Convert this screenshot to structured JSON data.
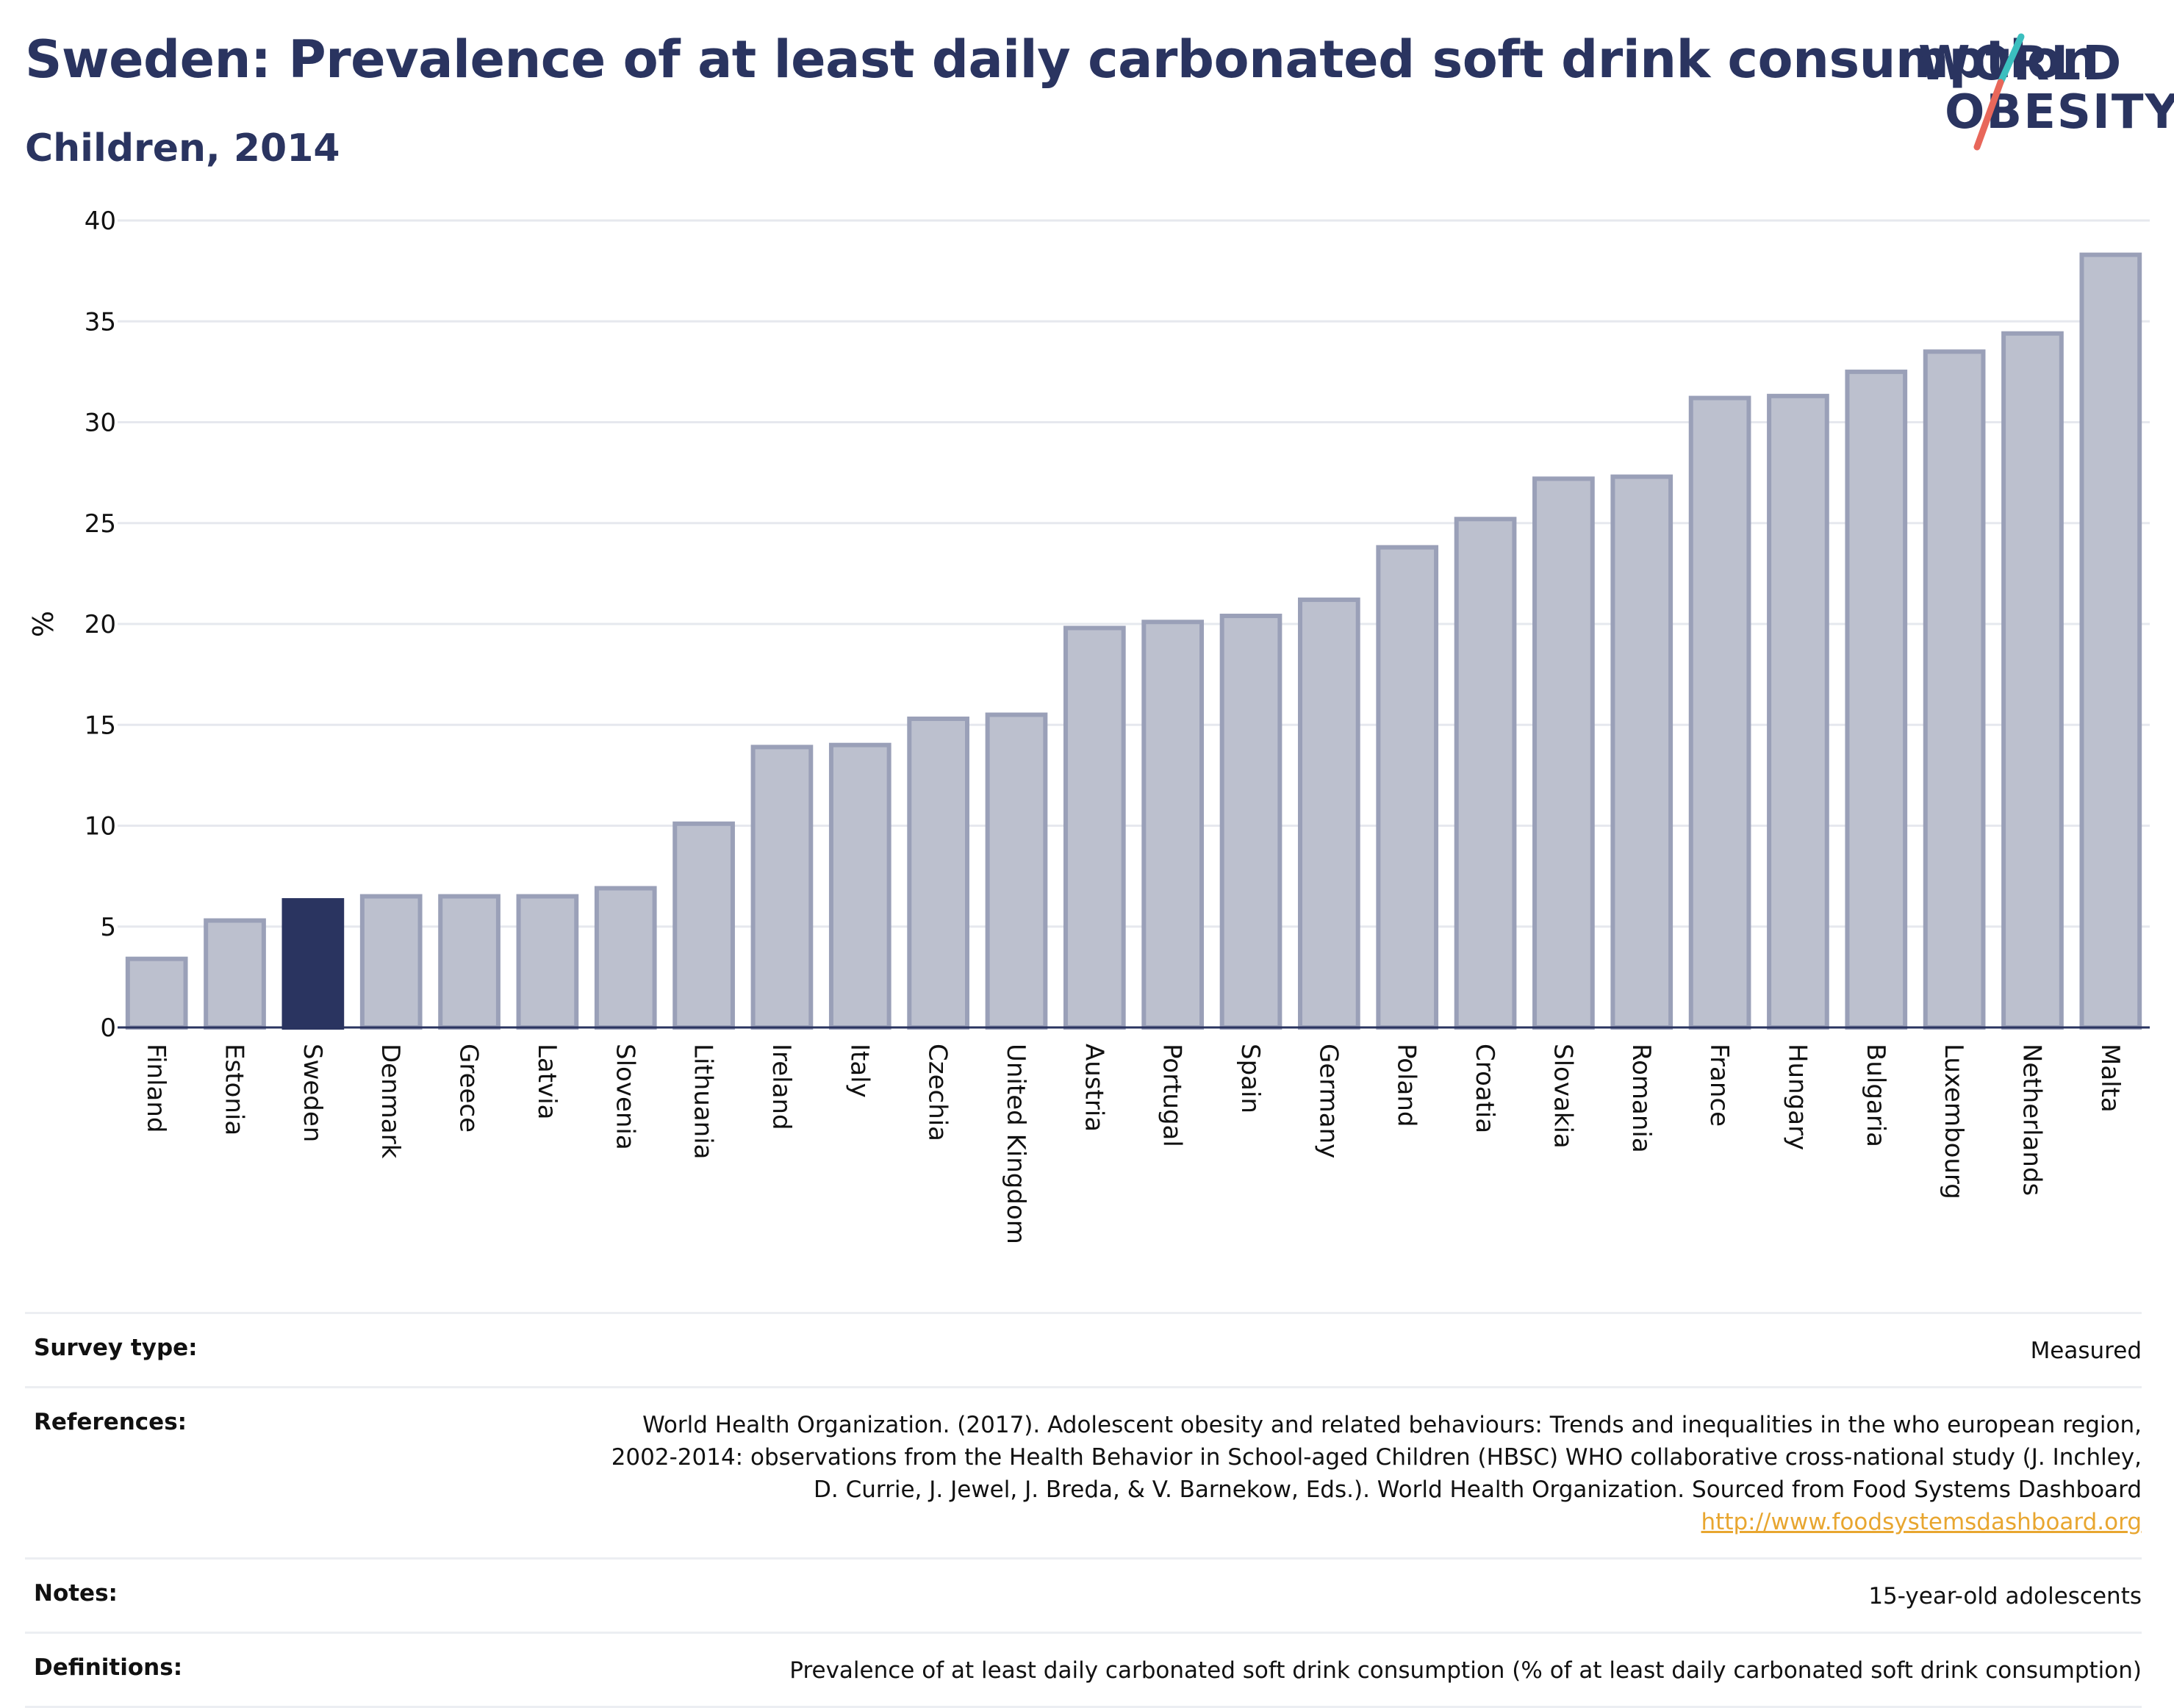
{
  "header": {
    "title": "Sweden: Prevalence of at least daily carbonated soft drink consumption",
    "subtitle": "Children, 2014"
  },
  "logo": {
    "line1": "WORLD",
    "line2": "OBESITY",
    "colors": {
      "text": "#2a3460",
      "slash_top": "#3bbfbf",
      "slash_bottom": "#e8675a"
    }
  },
  "chart_data": {
    "type": "bar",
    "ylabel": "%",
    "ylim": [
      0,
      40
    ],
    "yticks": [
      0,
      5,
      10,
      15,
      20,
      25,
      30,
      35,
      40
    ],
    "grid": true,
    "highlight": "Sweden",
    "colors": {
      "bar": "#bcc0ce",
      "bar_stroke": "#9aa0b8",
      "highlight": "#2a3460"
    },
    "categories": [
      "Finland",
      "Estonia",
      "Sweden",
      "Denmark",
      "Greece",
      "Latvia",
      "Slovenia",
      "Lithuania",
      "Ireland",
      "Italy",
      "Czechia",
      "United Kingdom",
      "Austria",
      "Portugal",
      "Spain",
      "Germany",
      "Poland",
      "Croatia",
      "Slovakia",
      "Romania",
      "France",
      "Hungary",
      "Bulgaria",
      "Luxembourg",
      "Netherlands",
      "Malta"
    ],
    "values": [
      3.4,
      5.3,
      6.3,
      6.5,
      6.5,
      6.5,
      6.9,
      10.1,
      13.9,
      14.0,
      15.3,
      15.5,
      19.8,
      20.1,
      20.4,
      21.2,
      23.8,
      25.2,
      27.2,
      27.3,
      31.2,
      31.3,
      32.5,
      33.5,
      34.4,
      38.3
    ]
  },
  "meta": {
    "survey_label": "Survey type:",
    "survey_value": "Measured",
    "references_label": "References:",
    "references_line1": "World Health Organization. (2017). Adolescent obesity and related behaviours: Trends and inequalities in the who european region,",
    "references_line2": "2002-2014: observations from the Health Behavior in School-aged Children (HBSC) WHO collaborative cross-national study (J. Inchley,",
    "references_line3": "D. Currie, J. Jewel, J. Breda, & V. Barnekow, Eds.). World Health Organization. Sourced from Food Systems Dashboard",
    "references_link": "http://www.foodsystemsdashboard.org",
    "notes_label": "Notes:",
    "notes_value": "15-year-old adolescents",
    "definitions_label": "Definitions:",
    "definitions_value": "Prevalence of at least daily carbonated soft drink consumption (% of at least daily carbonated soft drink consumption)"
  }
}
